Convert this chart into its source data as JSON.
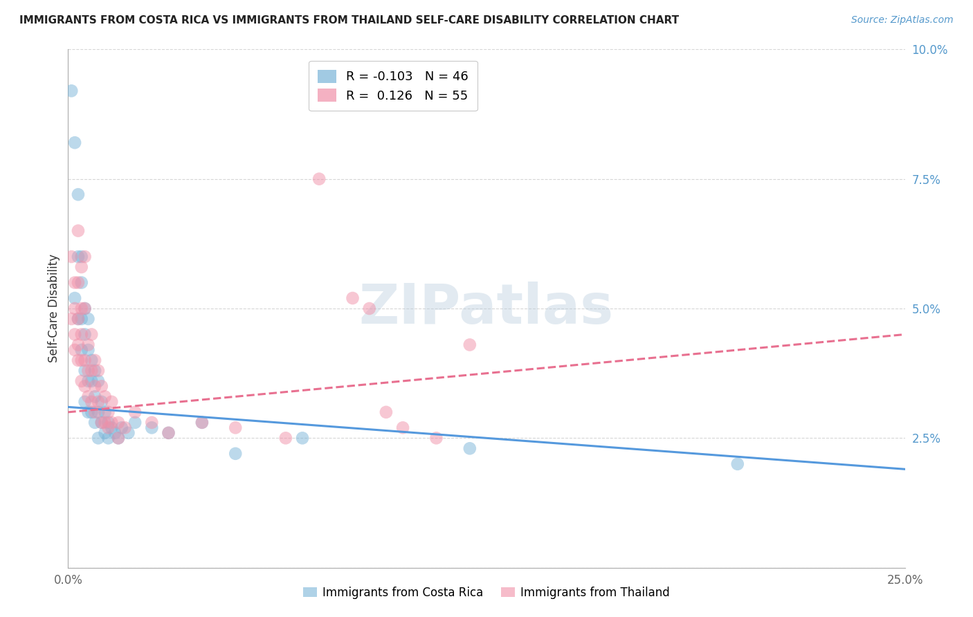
{
  "title": "IMMIGRANTS FROM COSTA RICA VS IMMIGRANTS FROM THAILAND SELF-CARE DISABILITY CORRELATION CHART",
  "source": "Source: ZipAtlas.com",
  "ylabel": "Self-Care Disability",
  "xlim": [
    0.0,
    0.25
  ],
  "ylim": [
    0.0,
    0.1
  ],
  "ytick_positions": [
    0.0,
    0.025,
    0.05,
    0.075,
    0.1
  ],
  "ytick_labels": [
    "",
    "2.5%",
    "5.0%",
    "7.5%",
    "10.0%"
  ],
  "xtick_positions": [
    0.0,
    0.05,
    0.1,
    0.15,
    0.2,
    0.25
  ],
  "xtick_labels": [
    "0.0%",
    "",
    "",
    "",
    "",
    "25.0%"
  ],
  "costa_rica_color": "#7ab4d8",
  "thailand_color": "#f090a8",
  "trend_cr_color": "#5599dd",
  "trend_th_color": "#e87090",
  "background_color": "#ffffff",
  "watermark": "ZIPatlas",
  "legend_cr_label": "R = -0.103   N = 46",
  "legend_th_label": "R =  0.126   N = 55",
  "bottom_legend_cr": "Immigrants from Costa Rica",
  "bottom_legend_th": "Immigrants from Thailand",
  "costa_rica_points": [
    [
      0.001,
      0.092
    ],
    [
      0.002,
      0.082
    ],
    [
      0.002,
      0.052
    ],
    [
      0.003,
      0.072
    ],
    [
      0.003,
      0.06
    ],
    [
      0.003,
      0.048
    ],
    [
      0.004,
      0.06
    ],
    [
      0.004,
      0.055
    ],
    [
      0.004,
      0.048
    ],
    [
      0.004,
      0.042
    ],
    [
      0.005,
      0.05
    ],
    [
      0.005,
      0.045
    ],
    [
      0.005,
      0.038
    ],
    [
      0.005,
      0.032
    ],
    [
      0.006,
      0.048
    ],
    [
      0.006,
      0.042
    ],
    [
      0.006,
      0.036
    ],
    [
      0.006,
      0.03
    ],
    [
      0.007,
      0.04
    ],
    [
      0.007,
      0.036
    ],
    [
      0.007,
      0.03
    ],
    [
      0.008,
      0.038
    ],
    [
      0.008,
      0.033
    ],
    [
      0.008,
      0.028
    ],
    [
      0.009,
      0.036
    ],
    [
      0.009,
      0.03
    ],
    [
      0.009,
      0.025
    ],
    [
      0.01,
      0.032
    ],
    [
      0.01,
      0.028
    ],
    [
      0.011,
      0.03
    ],
    [
      0.011,
      0.026
    ],
    [
      0.012,
      0.028
    ],
    [
      0.012,
      0.025
    ],
    [
      0.013,
      0.027
    ],
    [
      0.014,
      0.026
    ],
    [
      0.015,
      0.025
    ],
    [
      0.016,
      0.027
    ],
    [
      0.018,
      0.026
    ],
    [
      0.02,
      0.028
    ],
    [
      0.025,
      0.027
    ],
    [
      0.03,
      0.026
    ],
    [
      0.04,
      0.028
    ],
    [
      0.05,
      0.022
    ],
    [
      0.07,
      0.025
    ],
    [
      0.12,
      0.023
    ],
    [
      0.2,
      0.02
    ]
  ],
  "thailand_points": [
    [
      0.001,
      0.06
    ],
    [
      0.001,
      0.048
    ],
    [
      0.002,
      0.055
    ],
    [
      0.002,
      0.05
    ],
    [
      0.002,
      0.045
    ],
    [
      0.002,
      0.042
    ],
    [
      0.003,
      0.065
    ],
    [
      0.003,
      0.055
    ],
    [
      0.003,
      0.048
    ],
    [
      0.003,
      0.043
    ],
    [
      0.003,
      0.04
    ],
    [
      0.004,
      0.058
    ],
    [
      0.004,
      0.05
    ],
    [
      0.004,
      0.045
    ],
    [
      0.004,
      0.04
    ],
    [
      0.004,
      0.036
    ],
    [
      0.005,
      0.06
    ],
    [
      0.005,
      0.05
    ],
    [
      0.005,
      0.04
    ],
    [
      0.005,
      0.035
    ],
    [
      0.006,
      0.043
    ],
    [
      0.006,
      0.038
    ],
    [
      0.006,
      0.033
    ],
    [
      0.007,
      0.045
    ],
    [
      0.007,
      0.038
    ],
    [
      0.007,
      0.032
    ],
    [
      0.008,
      0.04
    ],
    [
      0.008,
      0.035
    ],
    [
      0.008,
      0.03
    ],
    [
      0.009,
      0.038
    ],
    [
      0.009,
      0.032
    ],
    [
      0.01,
      0.035
    ],
    [
      0.01,
      0.028
    ],
    [
      0.011,
      0.033
    ],
    [
      0.011,
      0.028
    ],
    [
      0.012,
      0.03
    ],
    [
      0.012,
      0.027
    ],
    [
      0.013,
      0.032
    ],
    [
      0.013,
      0.028
    ],
    [
      0.015,
      0.028
    ],
    [
      0.015,
      0.025
    ],
    [
      0.017,
      0.027
    ],
    [
      0.02,
      0.03
    ],
    [
      0.025,
      0.028
    ],
    [
      0.03,
      0.026
    ],
    [
      0.04,
      0.028
    ],
    [
      0.05,
      0.027
    ],
    [
      0.065,
      0.025
    ],
    [
      0.075,
      0.075
    ],
    [
      0.085,
      0.052
    ],
    [
      0.09,
      0.05
    ],
    [
      0.095,
      0.03
    ],
    [
      0.1,
      0.027
    ],
    [
      0.11,
      0.025
    ],
    [
      0.12,
      0.043
    ]
  ],
  "cr_trend_x": [
    0.0,
    0.25
  ],
  "cr_trend_y": [
    0.031,
    0.019
  ],
  "th_trend_x": [
    0.0,
    0.25
  ],
  "th_trend_y": [
    0.03,
    0.045
  ]
}
